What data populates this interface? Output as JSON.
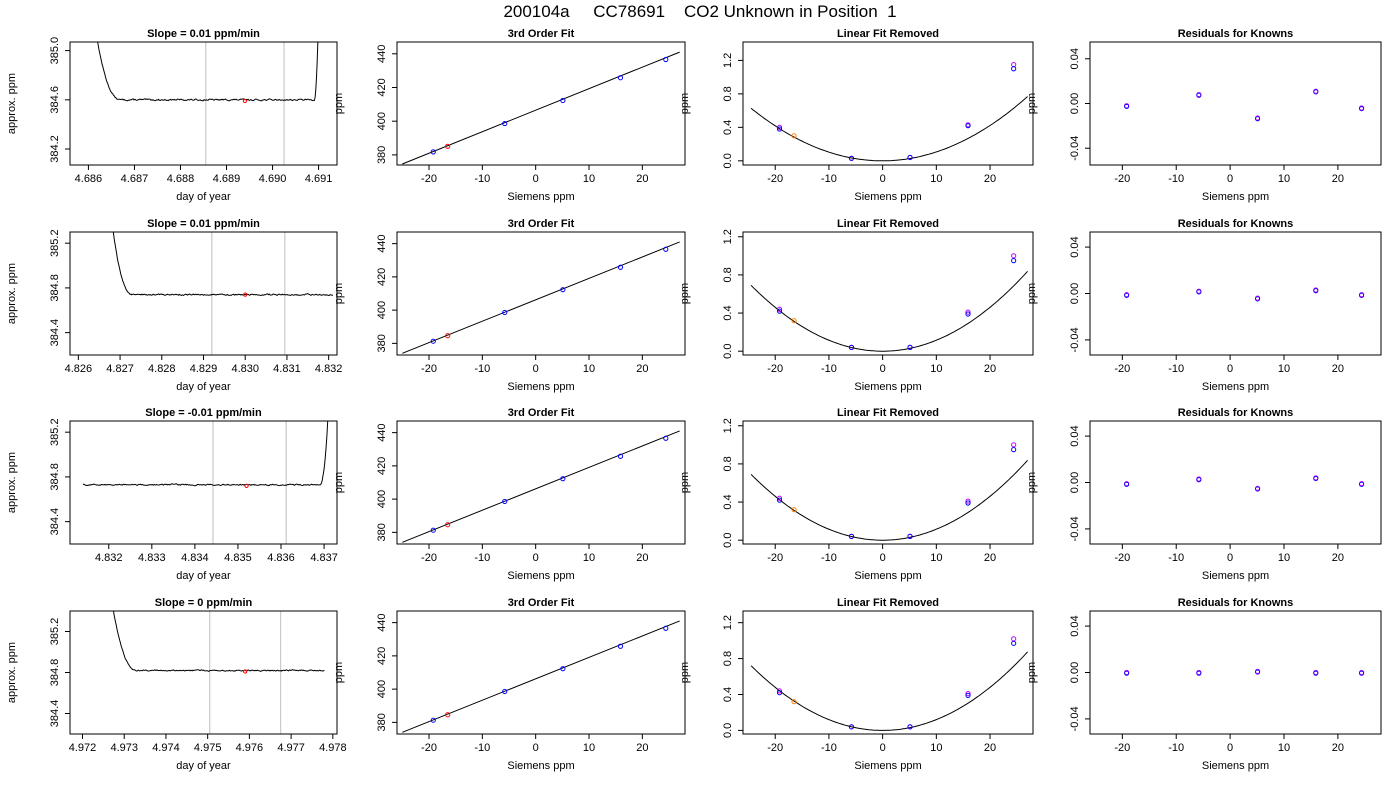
{
  "page": {
    "title": "200104a     CC78691    CO2 Unknown in Position  1"
  },
  "colors": {
    "trace": "#000000",
    "window_line": "#bebebe",
    "unknown_point": "#ff0000",
    "unknown_point_alt": "#ff8000",
    "known_point": "#0000ff",
    "known_point_alt": "#c000ff",
    "fit_line": "#000000"
  },
  "chart_data": [
    {
      "type": "line",
      "row": 0,
      "col": 0,
      "title": "Slope =  0.01  ppm/min",
      "xlabel": "day of year",
      "ylabel": "approx. ppm",
      "xlim": [
        4.6856,
        4.6914
      ],
      "ylim": [
        384.07,
        385.07
      ],
      "xticks": [
        4.686,
        4.687,
        4.688,
        4.689,
        4.69,
        4.691
      ],
      "yticks": [
        384.2,
        384.6,
        385.0
      ],
      "tick_decimals": [
        3,
        1
      ],
      "window": [
        4.68855,
        4.69025
      ],
      "marker": {
        "x": 4.6894,
        "y": 384.59
      },
      "trace": {
        "base": 384.6,
        "start": 4.6861,
        "end": 4.691,
        "noise": 0.012,
        "head": {
          "until": 4.6867,
          "peak": 385.3
        },
        "tail": {
          "from": 4.6909,
          "peak": 385.3
        }
      }
    },
    {
      "type": "scatter",
      "row": 0,
      "col": 1,
      "title": "3rd Order Fit",
      "xlabel": "Siemens ppm",
      "ylabel": "ppm",
      "xlim": [
        -26,
        28
      ],
      "ylim": [
        374,
        447
      ],
      "xticks": [
        -20,
        -10,
        0,
        10,
        20
      ],
      "yticks": [
        380,
        400,
        420,
        440
      ],
      "tick_decimals": [
        0,
        0
      ],
      "known_x": [
        -19.2,
        -5.8,
        5.1,
        15.9,
        24.4
      ],
      "known_y": [
        381.8,
        398.6,
        412.3,
        425.8,
        436.6
      ],
      "unknown_x": [
        -16.5
      ],
      "unknown_y": [
        385.1
      ],
      "fit": {
        "type": "line",
        "x0": -25.0,
        "y0": 374.6,
        "x1": 27.0,
        "y1": 441.0
      }
    },
    {
      "type": "scatter",
      "row": 0,
      "col": 2,
      "title": "Linear Fit Removed",
      "xlabel": "Siemens ppm",
      "ylabel": "ppm",
      "xlim": [
        -26,
        28
      ],
      "ylim": [
        -0.05,
        1.42
      ],
      "xticks": [
        -20,
        -10,
        0,
        10,
        20
      ],
      "yticks": [
        0.0,
        0.4,
        0.8,
        1.2
      ],
      "tick_decimals": [
        0,
        1
      ],
      "known_x": [
        -19.2,
        -5.8,
        5.1,
        15.9,
        24.4
      ],
      "known_y": [
        0.38,
        0.03,
        0.04,
        0.42,
        1.1
      ],
      "known_alt_y": [
        0.4,
        0.03,
        0.04,
        0.43,
        1.15
      ],
      "unknown_x": [
        -16.5
      ],
      "unknown_y": [
        0.3
      ],
      "fit": {
        "type": "curve",
        "a": 0.00105,
        "b": 0.00012,
        "c": 0.0,
        "from": -24.5,
        "to": 27.0
      }
    },
    {
      "type": "scatter",
      "row": 0,
      "col": 3,
      "title": "Residuals for Knowns",
      "xlabel": "Siemens ppm",
      "ylabel": "ppm",
      "xlim": [
        -26,
        28
      ],
      "ylim": [
        -0.055,
        0.055
      ],
      "xticks": [
        -20,
        -10,
        0,
        10,
        20
      ],
      "yticks": [
        -0.04,
        0.0,
        0.04
      ],
      "tick_decimals": [
        0,
        2
      ],
      "known_x": [
        -19.2,
        -5.8,
        5.1,
        15.9,
        24.4
      ],
      "known_y": [
        -0.002,
        0.008,
        -0.013,
        0.011,
        -0.004
      ]
    },
    {
      "type": "line",
      "row": 1,
      "col": 0,
      "title": "Slope =  0.01  ppm/min",
      "xlabel": "day of year",
      "ylabel": "approx. ppm",
      "xlim": [
        4.8258,
        4.8322
      ],
      "ylim": [
        384.2,
        385.3
      ],
      "xticks": [
        4.826,
        4.827,
        4.828,
        4.829,
        4.83,
        4.831,
        4.832
      ],
      "yticks": [
        384.4,
        384.8,
        385.2
      ],
      "tick_decimals": [
        3,
        1
      ],
      "window": [
        4.8292,
        4.83095
      ],
      "marker": {
        "x": 4.83,
        "y": 384.74
      },
      "trace": {
        "base": 384.74,
        "start": 4.8268,
        "end": 4.8321,
        "noise": 0.012,
        "head": {
          "until": 4.8273,
          "peak": 385.4
        }
      }
    },
    {
      "type": "scatter",
      "row": 1,
      "col": 1,
      "title": "3rd Order Fit",
      "xlabel": "Siemens ppm",
      "ylabel": "ppm",
      "xlim": [
        -26,
        28
      ],
      "ylim": [
        373,
        447
      ],
      "xticks": [
        -20,
        -10,
        0,
        10,
        20
      ],
      "yticks": [
        380,
        400,
        420,
        440
      ],
      "tick_decimals": [
        0,
        0
      ],
      "known_x": [
        -19.2,
        -5.8,
        5.1,
        15.9,
        24.4
      ],
      "known_y": [
        381.3,
        398.6,
        412.3,
        425.8,
        436.6
      ],
      "unknown_x": [
        -16.5
      ],
      "unknown_y": [
        384.6
      ],
      "fit": {
        "type": "line",
        "x0": -25.0,
        "y0": 374.0,
        "x1": 27.0,
        "y1": 441.0
      }
    },
    {
      "type": "scatter",
      "row": 1,
      "col": 2,
      "title": "Linear Fit Removed",
      "xlabel": "Siemens ppm",
      "ylabel": "ppm",
      "xlim": [
        -26,
        28
      ],
      "ylim": [
        -0.04,
        1.25
      ],
      "xticks": [
        -20,
        -10,
        0,
        10,
        20
      ],
      "yticks": [
        0.0,
        0.4,
        0.8,
        1.2
      ],
      "tick_decimals": [
        0,
        1
      ],
      "known_x": [
        -19.2,
        -5.8,
        5.1,
        15.9,
        24.4
      ],
      "known_y": [
        0.42,
        0.04,
        0.04,
        0.39,
        0.95
      ],
      "known_alt_y": [
        0.44,
        0.04,
        0.04,
        0.41,
        1.0
      ],
      "unknown_x": [
        -16.5
      ],
      "unknown_y": [
        0.32
      ],
      "fit": {
        "type": "curve",
        "a": 0.00115,
        "b": 0.0,
        "c": 0.0,
        "from": -24.5,
        "to": 27.0
      }
    },
    {
      "type": "scatter",
      "row": 1,
      "col": 3,
      "title": "Residuals for Knowns",
      "xlabel": "Siemens ppm",
      "ylabel": "ppm",
      "xlim": [
        -26,
        28
      ],
      "ylim": [
        -0.053,
        0.053
      ],
      "xticks": [
        -20,
        -10,
        0,
        10,
        20
      ],
      "yticks": [
        -0.04,
        0.0,
        0.04
      ],
      "tick_decimals": [
        0,
        2
      ],
      "known_x": [
        -19.2,
        -5.8,
        5.1,
        15.9,
        24.4
      ],
      "known_y": [
        -0.001,
        0.002,
        -0.004,
        0.003,
        -0.001
      ]
    },
    {
      "type": "line",
      "row": 2,
      "col": 0,
      "title": "Slope =  -0.01  ppm/min",
      "xlabel": "day of year",
      "ylabel": "approx. ppm",
      "xlim": [
        4.8311,
        4.8373
      ],
      "ylim": [
        384.2,
        385.3
      ],
      "xticks": [
        4.832,
        4.833,
        4.834,
        4.835,
        4.836,
        4.837
      ],
      "yticks": [
        384.4,
        384.8,
        385.2
      ],
      "tick_decimals": [
        3,
        1
      ],
      "window": [
        4.83442,
        4.83612
      ],
      "marker": {
        "x": 4.8352,
        "y": 384.72
      },
      "trace": {
        "base": 384.73,
        "start": 4.8314,
        "end": 4.8371,
        "noise": 0.012,
        "tail": {
          "from": 4.8369,
          "peak": 385.4
        }
      }
    },
    {
      "type": "scatter",
      "row": 2,
      "col": 1,
      "title": "3rd Order Fit",
      "xlabel": "Siemens ppm",
      "ylabel": "ppm",
      "xlim": [
        -26,
        28
      ],
      "ylim": [
        373,
        447
      ],
      "xticks": [
        -20,
        -10,
        0,
        10,
        20
      ],
      "yticks": [
        380,
        400,
        420,
        440
      ],
      "tick_decimals": [
        0,
        0
      ],
      "known_x": [
        -19.2,
        -5.8,
        5.1,
        15.9,
        24.4
      ],
      "known_y": [
        381.3,
        398.6,
        412.3,
        425.8,
        436.6
      ],
      "unknown_x": [
        -16.5
      ],
      "unknown_y": [
        384.6
      ],
      "fit": {
        "type": "line",
        "x0": -25.0,
        "y0": 374.0,
        "x1": 27.0,
        "y1": 441.0
      }
    },
    {
      "type": "scatter",
      "row": 2,
      "col": 2,
      "title": "Linear Fit Removed",
      "xlabel": "Siemens ppm",
      "ylabel": "ppm",
      "xlim": [
        -26,
        28
      ],
      "ylim": [
        -0.04,
        1.25
      ],
      "xticks": [
        -20,
        -10,
        0,
        10,
        20
      ],
      "yticks": [
        0.0,
        0.4,
        0.8,
        1.2
      ],
      "tick_decimals": [
        0,
        1
      ],
      "known_x": [
        -19.2,
        -5.8,
        5.1,
        15.9,
        24.4
      ],
      "known_y": [
        0.42,
        0.04,
        0.04,
        0.39,
        0.95
      ],
      "known_alt_y": [
        0.44,
        0.04,
        0.04,
        0.41,
        1.0
      ],
      "unknown_x": [
        -16.5
      ],
      "unknown_y": [
        0.32
      ],
      "fit": {
        "type": "curve",
        "a": 0.00115,
        "b": 0.0,
        "c": 0.0,
        "from": -24.5,
        "to": 27.0
      }
    },
    {
      "type": "scatter",
      "row": 2,
      "col": 3,
      "title": "Residuals for Knowns",
      "xlabel": "Siemens ppm",
      "ylabel": "ppm",
      "xlim": [
        -26,
        28
      ],
      "ylim": [
        -0.053,
        0.053
      ],
      "xticks": [
        -20,
        -10,
        0,
        10,
        20
      ],
      "yticks": [
        -0.04,
        0.0,
        0.04
      ],
      "tick_decimals": [
        0,
        2
      ],
      "known_x": [
        -19.2,
        -5.8,
        5.1,
        15.9,
        24.4
      ],
      "known_y": [
        -0.001,
        0.003,
        -0.005,
        0.004,
        -0.001
      ]
    },
    {
      "type": "line",
      "row": 3,
      "col": 0,
      "title": "Slope =  0  ppm/min",
      "xlabel": "day of year",
      "ylabel": "approx. ppm",
      "xlim": [
        4.9717,
        4.9781
      ],
      "ylim": [
        384.2,
        385.4
      ],
      "xticks": [
        4.972,
        4.973,
        4.974,
        4.975,
        4.976,
        4.977,
        4.978
      ],
      "yticks": [
        384.4,
        384.8,
        385.2
      ],
      "tick_decimals": [
        3,
        1
      ],
      "window": [
        4.97505,
        4.97675
      ],
      "marker": {
        "x": 4.9759,
        "y": 384.81
      },
      "trace": {
        "base": 384.82,
        "start": 4.9727,
        "end": 4.9778,
        "noise": 0.012,
        "head": {
          "until": 4.9733,
          "peak": 385.5
        }
      }
    },
    {
      "type": "scatter",
      "row": 3,
      "col": 1,
      "title": "3rd Order Fit",
      "xlabel": "Siemens ppm",
      "ylabel": "ppm",
      "xlim": [
        -26,
        28
      ],
      "ylim": [
        373,
        447
      ],
      "xticks": [
        -20,
        -10,
        0,
        10,
        20
      ],
      "yticks": [
        380,
        400,
        420,
        440
      ],
      "tick_decimals": [
        0,
        0
      ],
      "known_x": [
        -19.2,
        -5.8,
        5.1,
        15.9,
        24.4
      ],
      "known_y": [
        381.3,
        398.6,
        412.3,
        425.8,
        436.6
      ],
      "unknown_x": [
        -16.5
      ],
      "unknown_y": [
        384.6
      ],
      "fit": {
        "type": "line",
        "x0": -25.0,
        "y0": 374.0,
        "x1": 27.0,
        "y1": 441.0
      }
    },
    {
      "type": "scatter",
      "row": 3,
      "col": 2,
      "title": "Linear Fit Removed",
      "xlabel": "Siemens ppm",
      "ylabel": "ppm",
      "xlim": [
        -26,
        28
      ],
      "ylim": [
        -0.04,
        1.33
      ],
      "xticks": [
        -20,
        -10,
        0,
        10,
        20
      ],
      "yticks": [
        0.0,
        0.4,
        0.8,
        1.2
      ],
      "tick_decimals": [
        0,
        1
      ],
      "known_x": [
        -19.2,
        -5.8,
        5.1,
        15.9,
        24.4
      ],
      "known_y": [
        0.42,
        0.04,
        0.04,
        0.39,
        0.97
      ],
      "known_alt_y": [
        0.44,
        0.04,
        0.04,
        0.41,
        1.02
      ],
      "unknown_x": [
        -16.5
      ],
      "unknown_y": [
        0.32
      ],
      "fit": {
        "type": "curve",
        "a": 0.0012,
        "b": 0.0,
        "c": 0.0,
        "from": -24.5,
        "to": 27.0
      }
    },
    {
      "type": "scatter",
      "row": 3,
      "col": 3,
      "title": "Residuals for Knowns",
      "xlabel": "Siemens ppm",
      "ylabel": "ppm",
      "xlim": [
        -26,
        28
      ],
      "ylim": [
        -0.053,
        0.053
      ],
      "xticks": [
        -20,
        -10,
        0,
        10,
        20
      ],
      "yticks": [
        -0.04,
        0.0,
        0.04
      ],
      "tick_decimals": [
        0,
        2
      ],
      "known_x": [
        -19.2,
        -5.8,
        5.1,
        15.9,
        24.4
      ],
      "known_y": [
        0.0,
        0.0,
        0.001,
        0.0,
        0.0
      ]
    }
  ]
}
